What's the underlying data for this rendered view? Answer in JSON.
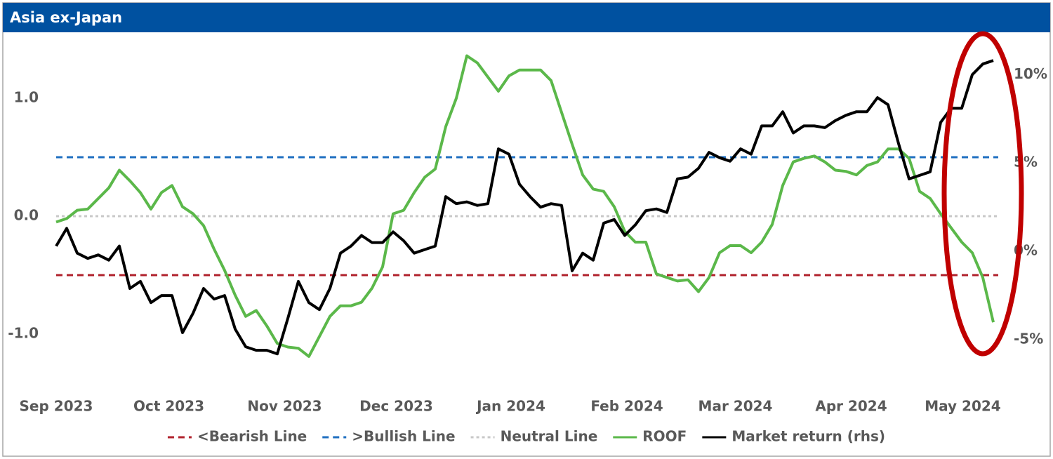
{
  "chart_data": {
    "type": "line",
    "title": "Asia ex-Japan",
    "xlim": [
      0,
      89
    ],
    "xticks": [
      {
        "value": 0,
        "label": "Sep 2023"
      },
      {
        "value": 10.7,
        "label": "Oct 2023"
      },
      {
        "value": 21.7,
        "label": "Nov 2023"
      },
      {
        "value": 32.3,
        "label": "Dec 2023"
      },
      {
        "value": 43.2,
        "label": "Jan 2024"
      },
      {
        "value": 54.2,
        "label": "Feb 2024"
      },
      {
        "value": 64.5,
        "label": "Mar 2024"
      },
      {
        "value": 75.5,
        "label": "Apr 2024"
      },
      {
        "value": 86.1,
        "label": "May 2024"
      }
    ],
    "ylim": [
      -1.4,
      1.5
    ],
    "yticks": [
      {
        "value": -1,
        "label": "-1.0"
      },
      {
        "value": 0,
        "label": "0.0"
      },
      {
        "value": 1,
        "label": "1.0"
      }
    ],
    "y2lim": [
      -7.35,
      12
    ],
    "y2ticks": [
      {
        "value": -5,
        "label": "-5%"
      },
      {
        "value": 0,
        "label": "0%"
      },
      {
        "value": 5,
        "label": "5%"
      },
      {
        "value": 10,
        "label": "10%"
      }
    ],
    "reference_lines": [
      {
        "name": "<Bearish Line",
        "color": "#b0212c",
        "value": -0.5,
        "style": "dashed"
      },
      {
        "name": ">Bullish Line",
        "color": "#1f6fc0",
        "value": 0.5,
        "style": "dashed"
      },
      {
        "name": "Neutral Line",
        "color": "#c8c8c8",
        "value": 0,
        "style": "dotted"
      }
    ],
    "series": [
      {
        "name": "ROOF",
        "color": "#5bb84a",
        "values": [
          -0.05,
          -0.02,
          0.05,
          0.06,
          0.15,
          0.24,
          0.39,
          0.3,
          0.2,
          0.06,
          0.2,
          0.26,
          0.08,
          0.02,
          -0.08,
          -0.28,
          -0.46,
          -0.67,
          -0.85,
          -0.8,
          -0.93,
          -1.08,
          -1.11,
          -1.12,
          -1.19,
          -1.02,
          -0.85,
          -0.76,
          -0.76,
          -0.73,
          -0.61,
          -0.43,
          0.02,
          0.05,
          0.2,
          0.33,
          0.4,
          0.76,
          1.0,
          1.36,
          1.3,
          1.18,
          1.06,
          1.19,
          1.24,
          1.24,
          1.24,
          1.15,
          0.88,
          0.61,
          0.35,
          0.23,
          0.21,
          0.08,
          -0.13,
          -0.22,
          -0.22,
          -0.49,
          -0.52,
          -0.55,
          -0.54,
          -0.64,
          -0.52,
          -0.31,
          -0.25,
          -0.25,
          -0.31,
          -0.22,
          -0.07,
          0.26,
          0.46,
          0.49,
          0.51,
          0.46,
          0.39,
          0.38,
          0.35,
          0.43,
          0.46,
          0.57,
          0.57,
          0.49,
          0.21,
          0.15,
          0.02,
          -0.1,
          -0.22,
          -0.31,
          -0.52,
          -0.9
        ]
      },
      {
        "name": "Market return (rhs)",
        "color": "#000000",
        "axis": "y2",
        "values": [
          0.3,
          1.3,
          -0.1,
          -0.4,
          -0.2,
          -0.5,
          0.3,
          -2.1,
          -1.7,
          -2.9,
          -2.5,
          -2.5,
          -4.6,
          -3.5,
          -2.1,
          -2.7,
          -2.5,
          -4.4,
          -5.4,
          -5.6,
          -5.6,
          -5.8,
          -3.8,
          -1.7,
          -2.9,
          -3.3,
          -2.1,
          -0.1,
          0.3,
          0.9,
          0.5,
          0.5,
          1.1,
          0.6,
          -0.1,
          0.1,
          0.3,
          3.1,
          2.7,
          2.8,
          2.6,
          2.7,
          5.8,
          5.5,
          3.8,
          3.1,
          2.5,
          2.7,
          2.6,
          -1.1,
          -0.1,
          -0.5,
          1.6,
          1.8,
          0.9,
          1.5,
          2.3,
          2.4,
          2.2,
          4.1,
          4.2,
          4.7,
          5.6,
          5.3,
          5.1,
          5.8,
          5.5,
          7.1,
          7.1,
          7.9,
          6.7,
          7.1,
          7.1,
          7.0,
          7.4,
          7.7,
          7.9,
          7.9,
          8.7,
          8.3,
          6.1,
          4.1,
          4.3,
          4.5,
          7.3,
          8.1,
          8.1,
          10.0,
          10.6,
          10.8
        ]
      }
    ]
  }
}
